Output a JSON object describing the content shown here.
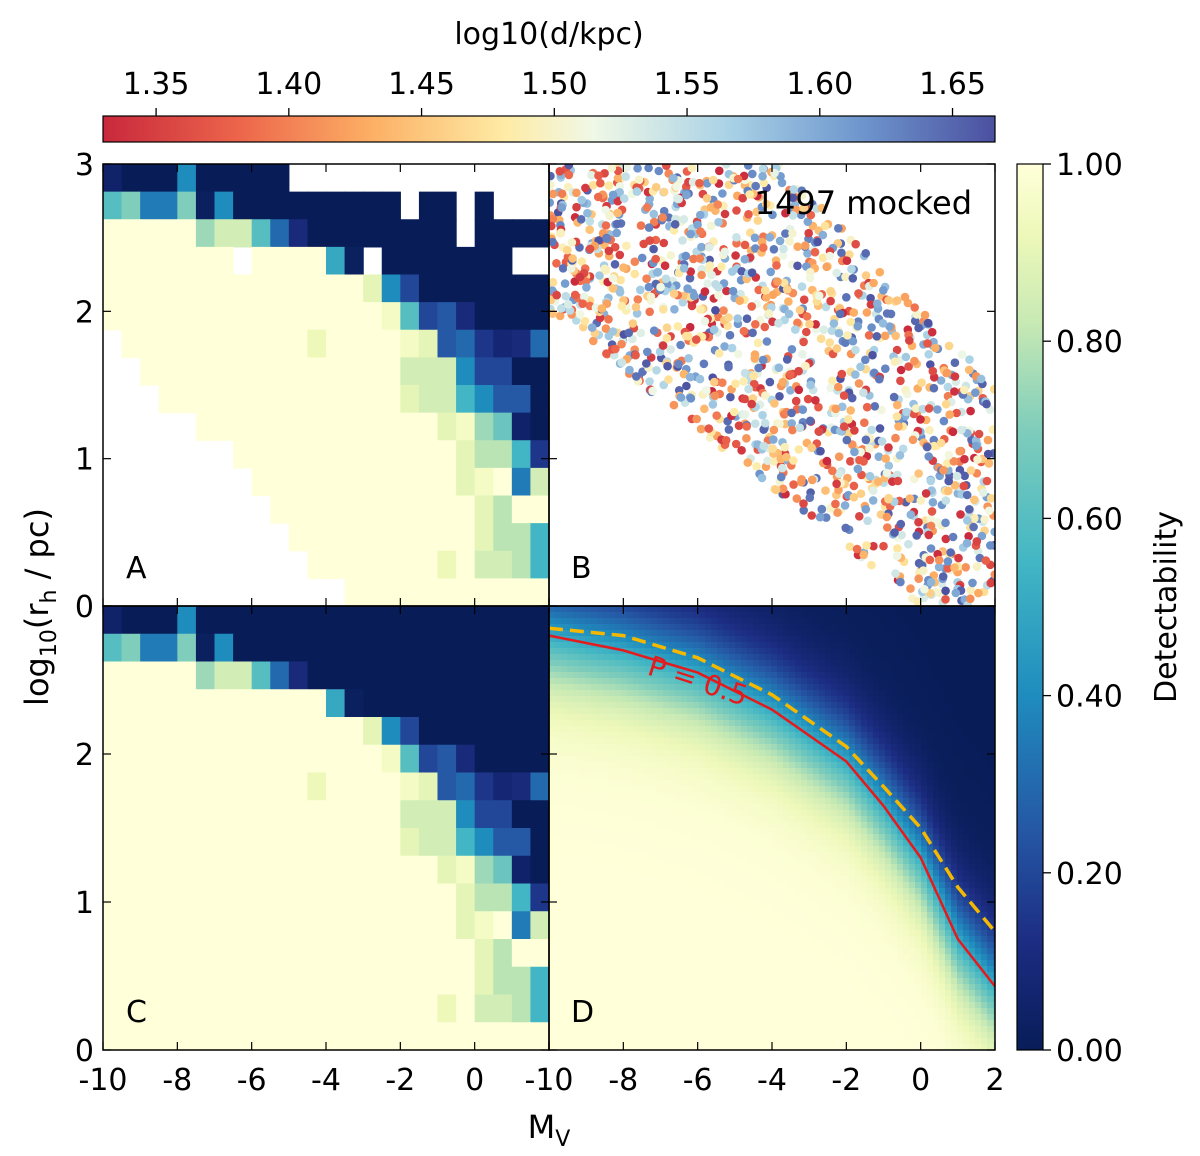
{
  "chart_data": {
    "type": "heatmap",
    "title": "",
    "panels": {
      "A": {
        "label": "A",
        "type": "heatmap",
        "description_key": "detectability_binned_with_gaps",
        "gaps": [
          [
            0,
            10
          ],
          [
            0,
            11
          ],
          [
            0,
            12
          ],
          [
            0,
            13
          ],
          [
            0,
            14
          ],
          [
            0,
            15
          ],
          [
            0,
            16
          ],
          [
            0,
            17
          ],
          [
            0,
            18
          ],
          [
            0,
            19
          ],
          [
            0,
            20
          ],
          [
            0,
            21
          ],
          [
            0,
            22
          ],
          [
            0,
            23
          ],
          [
            1,
            16
          ],
          [
            1,
            19
          ],
          [
            1,
            21
          ],
          [
            1,
            22
          ],
          [
            1,
            23
          ],
          [
            2,
            19
          ],
          [
            3,
            7
          ],
          [
            3,
            14
          ],
          [
            3,
            22
          ],
          [
            3,
            23
          ],
          [
            6,
            0
          ],
          [
            7,
            0
          ],
          [
            7,
            1
          ],
          [
            8,
            0
          ],
          [
            8,
            1
          ],
          [
            8,
            2
          ],
          [
            9,
            0
          ],
          [
            9,
            1
          ],
          [
            9,
            2
          ],
          [
            9,
            3
          ],
          [
            9,
            4
          ],
          [
            10,
            0
          ],
          [
            10,
            1
          ],
          [
            10,
            2
          ],
          [
            10,
            3
          ],
          [
            10,
            4
          ],
          [
            10,
            5
          ],
          [
            10,
            6
          ],
          [
            11,
            0
          ],
          [
            11,
            1
          ],
          [
            11,
            2
          ],
          [
            11,
            3
          ],
          [
            11,
            4
          ],
          [
            11,
            5
          ],
          [
            11,
            6
          ],
          [
            11,
            7
          ],
          [
            12,
            0
          ],
          [
            12,
            1
          ],
          [
            12,
            2
          ],
          [
            12,
            3
          ],
          [
            12,
            4
          ],
          [
            12,
            5
          ],
          [
            12,
            6
          ],
          [
            12,
            7
          ],
          [
            12,
            8
          ],
          [
            13,
            0
          ],
          [
            13,
            1
          ],
          [
            13,
            2
          ],
          [
            13,
            3
          ],
          [
            13,
            4
          ],
          [
            13,
            5
          ],
          [
            13,
            6
          ],
          [
            13,
            7
          ],
          [
            13,
            8
          ],
          [
            13,
            9
          ],
          [
            14,
            0
          ],
          [
            14,
            1
          ],
          [
            14,
            2
          ],
          [
            14,
            3
          ],
          [
            14,
            4
          ],
          [
            14,
            5
          ],
          [
            14,
            6
          ],
          [
            14,
            7
          ],
          [
            14,
            8
          ],
          [
            14,
            9
          ],
          [
            14,
            10
          ],
          [
            15,
            0
          ],
          [
            15,
            1
          ],
          [
            15,
            2
          ],
          [
            15,
            3
          ],
          [
            15,
            4
          ],
          [
            15,
            5
          ],
          [
            15,
            6
          ],
          [
            15,
            7
          ],
          [
            15,
            8
          ],
          [
            15,
            9
          ],
          [
            15,
            10
          ],
          [
            15,
            11
          ],
          [
            15,
            12
          ]
        ]
      },
      "B": {
        "label": "B",
        "type": "scatter",
        "annotation": "1497 mocked",
        "n_points": 1497,
        "color_quantity": "log10(d/kpc)",
        "color_range": [
          1.33,
          1.666
        ]
      },
      "C": {
        "label": "C",
        "type": "heatmap",
        "description_key": "detectability_binned_filled"
      },
      "D": {
        "label": "D",
        "type": "heatmap",
        "description_key": "detectability_smooth_model",
        "contour_label": "P = 0.5",
        "contour_red": [
          [
            -10,
            2.8
          ],
          [
            -8,
            2.7
          ],
          [
            -6,
            2.55
          ],
          [
            -4,
            2.3
          ],
          [
            -2,
            1.95
          ],
          [
            -1,
            1.65
          ],
          [
            0,
            1.3
          ],
          [
            1,
            0.75
          ],
          [
            2,
            0.43
          ]
        ],
        "contour_dashed": [
          [
            -10,
            2.85
          ],
          [
            -8,
            2.8
          ],
          [
            -6,
            2.65
          ],
          [
            -4,
            2.4
          ],
          [
            -2,
            2.05
          ],
          [
            -1,
            1.78
          ],
          [
            0,
            1.5
          ],
          [
            1,
            1.1
          ],
          [
            2,
            0.8
          ]
        ]
      }
    },
    "heatmap_values": [
      [
        0.05,
        0.0,
        0.0,
        0.0,
        0.4,
        0.0,
        0.0,
        0.0,
        0.0,
        0.0,
        0.0,
        0.0,
        0.0,
        0.0,
        0.0,
        0.0,
        0.0,
        0.0,
        0.0,
        0.0,
        0.0,
        0.0,
        0.0,
        0.0
      ],
      [
        0.6,
        0.7,
        0.35,
        0.35,
        0.7,
        0.02,
        0.4,
        0.0,
        0.0,
        0.0,
        0.0,
        0.0,
        0.0,
        0.0,
        0.0,
        0.0,
        0.0,
        0.0,
        0.0,
        0.0,
        0.0,
        0.0,
        0.0,
        0.0
      ],
      [
        1.0,
        1.0,
        1.0,
        1.0,
        1.0,
        0.75,
        0.85,
        0.85,
        0.6,
        0.3,
        0.1,
        0.0,
        0.0,
        0.0,
        0.0,
        0.0,
        0.0,
        0.0,
        0.0,
        0.0,
        0.0,
        0.0,
        0.0,
        0.0
      ],
      [
        1.0,
        1.0,
        1.0,
        1.0,
        1.0,
        1.0,
        1.0,
        1.0,
        1.0,
        1.0,
        1.0,
        1.0,
        0.5,
        0.02,
        0.0,
        0.0,
        0.0,
        0.0,
        0.0,
        0.0,
        0.0,
        0.0,
        0.0,
        0.0
      ],
      [
        1.0,
        1.0,
        1.0,
        1.0,
        1.0,
        1.0,
        1.0,
        1.0,
        1.0,
        1.0,
        1.0,
        1.0,
        1.0,
        1.0,
        0.9,
        0.4,
        0.2,
        0.0,
        0.0,
        0.0,
        0.0,
        0.0,
        0.0,
        0.0
      ],
      [
        1.0,
        1.0,
        1.0,
        1.0,
        1.0,
        1.0,
        1.0,
        1.0,
        1.0,
        1.0,
        1.0,
        1.0,
        1.0,
        1.0,
        1.0,
        0.95,
        0.6,
        0.2,
        0.25,
        0.1,
        0.0,
        0.0,
        0.0,
        0.0
      ],
      [
        1.0,
        1.0,
        1.0,
        1.0,
        1.0,
        1.0,
        1.0,
        1.0,
        1.0,
        1.0,
        1.0,
        0.92,
        1.0,
        1.0,
        1.0,
        1.0,
        0.95,
        0.9,
        0.25,
        0.3,
        0.15,
        0.08,
        0.1,
        0.3
      ],
      [
        1.0,
        1.0,
        1.0,
        1.0,
        1.0,
        1.0,
        1.0,
        1.0,
        1.0,
        1.0,
        1.0,
        1.0,
        1.0,
        1.0,
        1.0,
        1.0,
        0.85,
        0.85,
        0.85,
        0.4,
        0.2,
        0.2,
        0.0,
        0.0
      ],
      [
        1.0,
        1.0,
        1.0,
        1.0,
        1.0,
        1.0,
        1.0,
        1.0,
        1.0,
        1.0,
        1.0,
        1.0,
        1.0,
        1.0,
        1.0,
        1.0,
        0.9,
        0.85,
        0.85,
        0.55,
        0.4,
        0.25,
        0.25,
        0.0
      ],
      [
        1.0,
        1.0,
        1.0,
        1.0,
        1.0,
        1.0,
        1.0,
        1.0,
        1.0,
        1.0,
        1.0,
        1.0,
        1.0,
        1.0,
        1.0,
        1.0,
        1.0,
        1.0,
        0.9,
        0.95,
        0.75,
        0.65,
        0.05,
        0.0
      ],
      [
        1.0,
        1.0,
        1.0,
        1.0,
        1.0,
        1.0,
        1.0,
        1.0,
        1.0,
        1.0,
        1.0,
        1.0,
        1.0,
        1.0,
        1.0,
        1.0,
        1.0,
        1.0,
        1.0,
        0.9,
        0.8,
        0.8,
        0.55,
        0.15
      ],
      [
        1.0,
        1.0,
        1.0,
        1.0,
        1.0,
        1.0,
        1.0,
        1.0,
        1.0,
        1.0,
        1.0,
        1.0,
        1.0,
        1.0,
        1.0,
        1.0,
        1.0,
        1.0,
        1.0,
        0.9,
        0.95,
        1.0,
        0.35,
        0.85
      ],
      [
        1.0,
        1.0,
        1.0,
        1.0,
        1.0,
        1.0,
        1.0,
        1.0,
        1.0,
        1.0,
        1.0,
        1.0,
        1.0,
        1.0,
        1.0,
        1.0,
        1.0,
        1.0,
        1.0,
        1.0,
        0.9,
        0.8,
        1.0,
        1.0
      ],
      [
        1.0,
        1.0,
        1.0,
        1.0,
        1.0,
        1.0,
        1.0,
        1.0,
        1.0,
        1.0,
        1.0,
        1.0,
        1.0,
        1.0,
        1.0,
        1.0,
        1.0,
        1.0,
        1.0,
        1.0,
        0.9,
        0.8,
        0.8,
        0.55
      ],
      [
        1.0,
        1.0,
        1.0,
        1.0,
        1.0,
        1.0,
        1.0,
        1.0,
        1.0,
        1.0,
        1.0,
        1.0,
        1.0,
        1.0,
        1.0,
        1.0,
        1.0,
        1.0,
        0.92,
        1.0,
        0.85,
        0.85,
        0.8,
        0.55
      ],
      [
        1.0,
        1.0,
        1.0,
        1.0,
        1.0,
        1.0,
        1.0,
        1.0,
        1.0,
        1.0,
        1.0,
        1.0,
        1.0,
        1.0,
        1.0,
        1.0,
        1.0,
        1.0,
        1.0,
        1.0,
        1.0,
        1.0,
        1.0,
        1.0
      ]
    ],
    "grid": {
      "x_edges": [
        -10,
        2
      ],
      "y_edges": [
        0,
        3
      ],
      "n_cols": 24,
      "n_rows": 16
    },
    "xlabel": "M",
    "xlabel_sub": "V",
    "ylabel_prefix": "log",
    "ylabel_sub1": "10",
    "ylabel_mid": "(r",
    "ylabel_sub2": "h",
    "ylabel_suffix": " / pc)",
    "xlim": [
      -10,
      2
    ],
    "ylim": [
      0,
      3
    ],
    "x_ticks_left": [
      "-10",
      "-8",
      "-6",
      "-4",
      "-2",
      "0"
    ],
    "x_ticks_right": [
      "-10",
      "-8",
      "-6",
      "-4",
      "-2",
      "0",
      "2"
    ],
    "y_ticks_top": [
      "0",
      "1",
      "2",
      "3"
    ],
    "y_ticks_bottom": [
      "0",
      "1",
      "2"
    ],
    "colorbar_top": {
      "label": "log10(d/kpc)",
      "range": [
        1.33,
        1.666
      ],
      "ticks": [
        "1.35",
        "1.40",
        "1.45",
        "1.50",
        "1.55",
        "1.60",
        "1.65"
      ],
      "tick_values": [
        1.35,
        1.4,
        1.45,
        1.5,
        1.55,
        1.6,
        1.65
      ],
      "colormap": "RdYlBu"
    },
    "colorbar_right": {
      "label": "Detectability",
      "range": [
        0,
        1
      ],
      "ticks": [
        "0.00",
        "0.20",
        "0.40",
        "0.60",
        "0.80",
        "1.00"
      ],
      "tick_values": [
        0,
        0.2,
        0.4,
        0.6,
        0.8,
        1.0
      ],
      "colormap": "YlGnBu_r"
    },
    "colors": {
      "contour_red": "#e41a1c",
      "contour_dashed": "#f5b800"
    }
  }
}
